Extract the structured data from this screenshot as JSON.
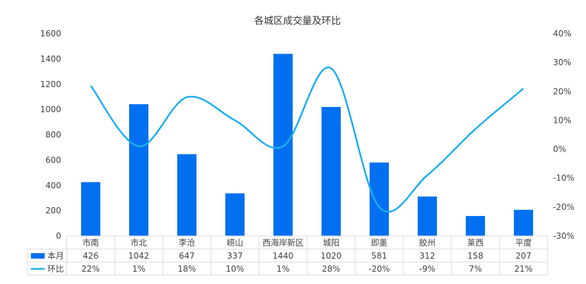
{
  "chart_data": {
    "type": "bar",
    "title": "各城区成交量及环比",
    "categories": [
      "市南",
      "市北",
      "李沧",
      "崂山",
      "西海岸新区",
      "城阳",
      "即墨",
      "胶州",
      "莱西",
      "平度"
    ],
    "series": [
      {
        "name": "本月",
        "type": "bar",
        "axis": "left",
        "color": "#0070F0",
        "values": [
          426,
          1042,
          647,
          337,
          1440,
          1020,
          581,
          312,
          158,
          207
        ],
        "labels": [
          "426",
          "1042",
          "647",
          "337",
          "1440",
          "1020",
          "581",
          "312",
          "158",
          "207"
        ]
      },
      {
        "name": "环比",
        "type": "line",
        "smooth": true,
        "axis": "right",
        "color": "#1AAEF0",
        "values": [
          22,
          1,
          18,
          10,
          1,
          28,
          -20,
          -9,
          7,
          21
        ],
        "labels": [
          "22%",
          "1%",
          "18%",
          "10%",
          "1%",
          "28%",
          "-20%",
          "-9%",
          "7%",
          "21%"
        ]
      }
    ],
    "y_left": {
      "min": 0,
      "max": 1600,
      "step": 200,
      "ticks": [
        "0",
        "200",
        "400",
        "600",
        "800",
        "1000",
        "1200",
        "1400",
        "1600"
      ]
    },
    "y_right": {
      "min": -30,
      "max": 40,
      "step": 10,
      "ticks": [
        "-30%",
        "-20%",
        "-10%",
        "0%",
        "10%",
        "20%",
        "30%",
        "40%"
      ]
    },
    "grid": false,
    "legend": "data-table"
  }
}
